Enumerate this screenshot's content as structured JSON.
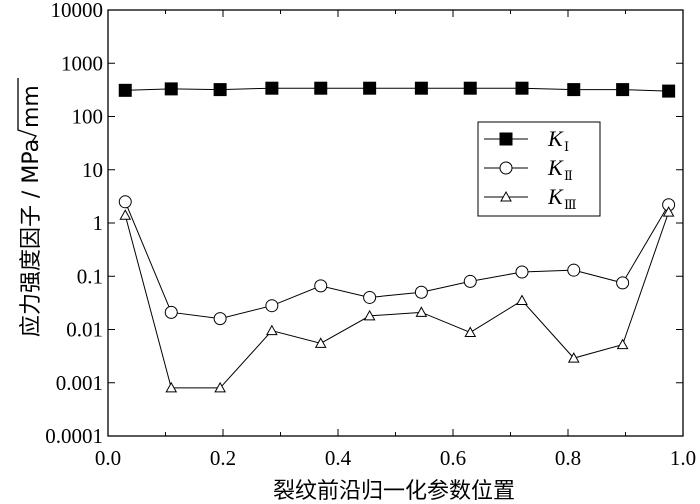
{
  "chart_data": {
    "type": "line",
    "title": "",
    "xlabel": "裂纹前沿归一化参数位置",
    "ylabel": "应力强度因子 / MPa",
    "ylabel_unit": "mm",
    "yscale": "log",
    "xlim": [
      0.0,
      1.0
    ],
    "ylim": [
      0.0001,
      10000
    ],
    "x_ticks": [
      "0.0",
      "0.2",
      "0.4",
      "0.6",
      "0.8",
      "1.0"
    ],
    "y_ticks": [
      "0.0001",
      "0.001",
      "0.01",
      "0.1",
      "1",
      "10",
      "100",
      "1000",
      "10000"
    ],
    "grid": false,
    "legend_position": "right",
    "series": [
      {
        "name": "K",
        "subscript": "Ⅰ",
        "marker": "filled-square",
        "x": [
          0.03,
          0.11,
          0.195,
          0.285,
          0.37,
          0.455,
          0.545,
          0.63,
          0.72,
          0.81,
          0.895,
          0.975
        ],
        "y": [
          310,
          330,
          320,
          340,
          340,
          340,
          340,
          340,
          340,
          320,
          320,
          300
        ]
      },
      {
        "name": "K",
        "subscript": "Ⅱ",
        "marker": "open-circle",
        "x": [
          0.03,
          0.11,
          0.195,
          0.285,
          0.37,
          0.455,
          0.545,
          0.63,
          0.72,
          0.81,
          0.895,
          0.975
        ],
        "y": [
          2.5,
          0.021,
          0.016,
          0.028,
          0.066,
          0.04,
          0.05,
          0.08,
          0.12,
          0.13,
          0.075,
          2.2
        ]
      },
      {
        "name": "K",
        "subscript": "Ⅲ",
        "marker": "open-triangle",
        "x": [
          0.03,
          0.11,
          0.195,
          0.285,
          0.37,
          0.455,
          0.545,
          0.63,
          0.72,
          0.81,
          0.895,
          0.975
        ],
        "y": [
          1.4,
          0.0008,
          0.0008,
          0.0095,
          0.0055,
          0.018,
          0.021,
          0.0088,
          0.035,
          0.0029,
          0.0052,
          1.6
        ]
      }
    ]
  }
}
